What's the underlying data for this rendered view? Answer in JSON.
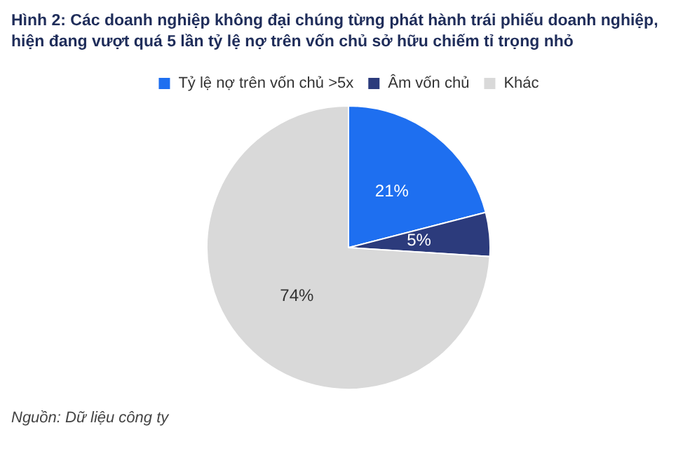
{
  "chart_data": {
    "type": "pie",
    "title": "Hình 2: Các doanh nghiệp không đại chúng từng phát hành trái phiếu doanh nghiệp, hiện đang vượt quá 5 lần tỷ lệ nợ trên vốn chủ sở hữu chiếm tỉ trọng nhỏ",
    "categories": [
      "Tỷ lệ nợ trên vốn chủ >5x",
      "Âm vốn chủ",
      "Khác"
    ],
    "values": [
      21,
      5,
      74
    ],
    "colors": [
      "#1e6ff0",
      "#2c3b7c",
      "#d9d9d9"
    ],
    "value_labels": [
      "21%",
      "5%",
      "74%"
    ],
    "legend": "top",
    "annotations": [
      "Nguồn: Dữ liệu công ty"
    ]
  }
}
